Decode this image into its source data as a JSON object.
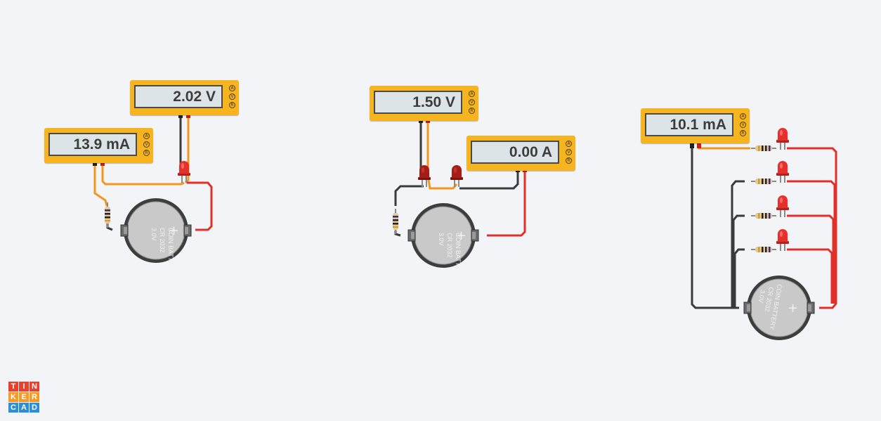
{
  "meters": [
    {
      "id": "c1-ammeter",
      "reading": "13.9 mA",
      "modes": [
        "A",
        "V",
        "R"
      ]
    },
    {
      "id": "c1-voltmeter",
      "reading": "2.02 V",
      "modes": [
        "A",
        "V",
        "R"
      ]
    },
    {
      "id": "c2-voltmeter",
      "reading": "1.50 V",
      "modes": [
        "A",
        "V",
        "R"
      ]
    },
    {
      "id": "c2-ammeter",
      "reading": "0.00 A",
      "modes": [
        "A",
        "V",
        "R"
      ]
    },
    {
      "id": "c3-ammeter",
      "reading": "10.1 mA",
      "modes": [
        "A",
        "V",
        "R"
      ]
    }
  ],
  "battery": {
    "line1": "COIN BATTERY",
    "line2": "CR 2032",
    "line3": "3.0V",
    "polarity": "+"
  },
  "logo": {
    "letters": [
      "T",
      "I",
      "N",
      "K",
      "E",
      "R",
      "C",
      "A",
      "D"
    ]
  },
  "colors": {
    "background": "#f2f4f7",
    "meter_body": "#f6b51f",
    "wire_red": "#e0302a",
    "wire_orange": "#f2961c",
    "wire_black": "#3a3a3a",
    "led_red": "#e8302a",
    "led_dark_red": "#b5201c",
    "logo_red": "#e8402a",
    "logo_orange": "#f59a23",
    "logo_blue": "#2a8fd8"
  }
}
